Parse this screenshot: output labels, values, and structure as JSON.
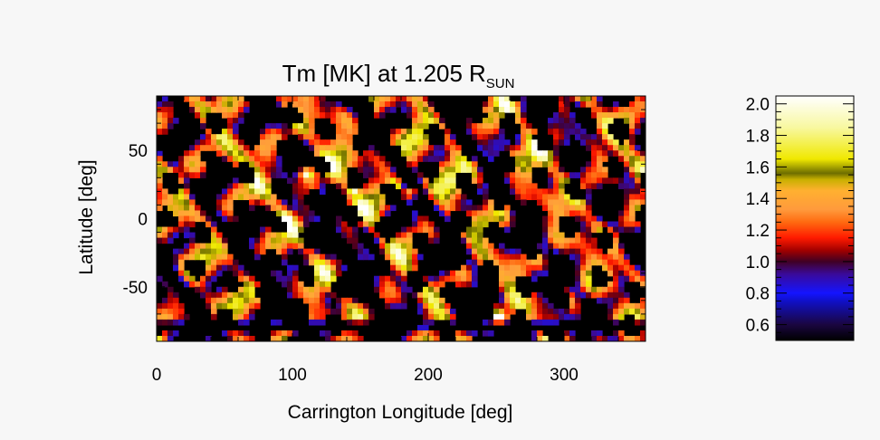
{
  "chart_data": {
    "type": "heatmap",
    "title": "Tm [MK] at 1.205",
    "title_symbol": "R",
    "title_subscript": "SUN",
    "xlabel": "Carrington Longitude [deg]",
    "ylabel": "Latitude [deg]",
    "xlim": [
      0,
      360
    ],
    "ylim": [
      -90,
      90
    ],
    "x_ticks": [
      0,
      100,
      200,
      300
    ],
    "x_tick_labels": [
      "0",
      "100",
      "200",
      "300"
    ],
    "y_ticks": [
      50,
      0,
      -50
    ],
    "y_tick_labels": [
      "50",
      "0",
      "-50"
    ],
    "colorbar": {
      "min": 0.5,
      "max": 2.05,
      "ticks": [
        0.6,
        0.8,
        1.0,
        1.2,
        1.4,
        1.6,
        1.8,
        2.0
      ],
      "tick_labels": [
        "0.6",
        "0.8",
        "1.0",
        "1.2",
        "1.4",
        "1.6",
        "1.8",
        "2.0"
      ],
      "colormap": [
        "#000000",
        "#1a0640",
        "#1010c8",
        "#1414ff",
        "#3a0a9a",
        "#400024",
        "#a00000",
        "#ff1a00",
        "#ff6a10",
        "#ff9a3c",
        "#ffb030",
        "#c8b000",
        "#6e6e00",
        "#f0e800",
        "#f8f8a0",
        "#ffffff"
      ],
      "colormap_values": [
        0.5,
        0.6,
        0.75,
        0.8,
        0.92,
        1.0,
        1.07,
        1.15,
        1.25,
        1.33,
        1.45,
        1.52,
        1.56,
        1.65,
        1.85,
        2.05
      ]
    },
    "grid": false,
    "field_description": "Temperature map; black voids (~0.5 MK) interleaved with red/orange (1.1-1.4 MK) and yellow (1.5-1.9 MK) patches; a blue-purple band near the south pole (~0.8 MK); bright white spots near the equator around longitudes 90-190 (~2.0 MK)."
  }
}
